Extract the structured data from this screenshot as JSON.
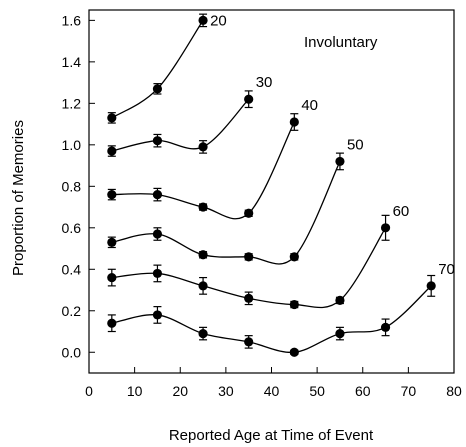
{
  "chart_data": {
    "type": "line",
    "annotation": "Involuntary",
    "xlabel": "Reported Age at Time of Event",
    "ylabel": "Proportion of Memories",
    "xlim": [
      0,
      80
    ],
    "ylim": [
      -0.1,
      1.65
    ],
    "xticks": [
      "0",
      "10",
      "20",
      "30",
      "40",
      "50",
      "60",
      "70",
      "80"
    ],
    "yticks": [
      "0.0",
      "0.2",
      "0.4",
      "0.6",
      "0.8",
      "1.0",
      "1.2",
      "1.4",
      "1.6"
    ],
    "grid": false,
    "series": [
      {
        "name": "20",
        "x": [
          5,
          15,
          25
        ],
        "y": [
          1.13,
          1.27,
          1.6
        ],
        "err": [
          0.025,
          0.025,
          0.03
        ]
      },
      {
        "name": "30",
        "x": [
          5,
          15,
          25,
          35
        ],
        "y": [
          0.97,
          1.02,
          0.99,
          1.22
        ],
        "err": [
          0.025,
          0.03,
          0.03,
          0.04
        ]
      },
      {
        "name": "40",
        "x": [
          5,
          15,
          25,
          35,
          45
        ],
        "y": [
          0.76,
          0.76,
          0.7,
          0.67,
          1.11
        ],
        "err": [
          0.025,
          0.03,
          0.015,
          0.015,
          0.04
        ]
      },
      {
        "name": "50",
        "x": [
          5,
          15,
          25,
          35,
          45,
          55
        ],
        "y": [
          0.53,
          0.57,
          0.47,
          0.46,
          0.46,
          0.92
        ],
        "err": [
          0.025,
          0.03,
          0.015,
          0.015,
          0.015,
          0.04
        ]
      },
      {
        "name": "60",
        "x": [
          5,
          15,
          25,
          35,
          45,
          55,
          65
        ],
        "y": [
          0.36,
          0.38,
          0.32,
          0.26,
          0.23,
          0.25,
          0.6
        ],
        "err": [
          0.04,
          0.04,
          0.04,
          0.03,
          0.015,
          0.015,
          0.06
        ]
      },
      {
        "name": "70",
        "x": [
          5,
          15,
          25,
          35,
          45,
          55,
          65,
          75
        ],
        "y": [
          0.14,
          0.18,
          0.09,
          0.05,
          0.0,
          0.09,
          0.12,
          0.32
        ],
        "err": [
          0.04,
          0.04,
          0.03,
          0.03,
          0.01,
          0.03,
          0.04,
          0.05
        ]
      }
    ]
  }
}
